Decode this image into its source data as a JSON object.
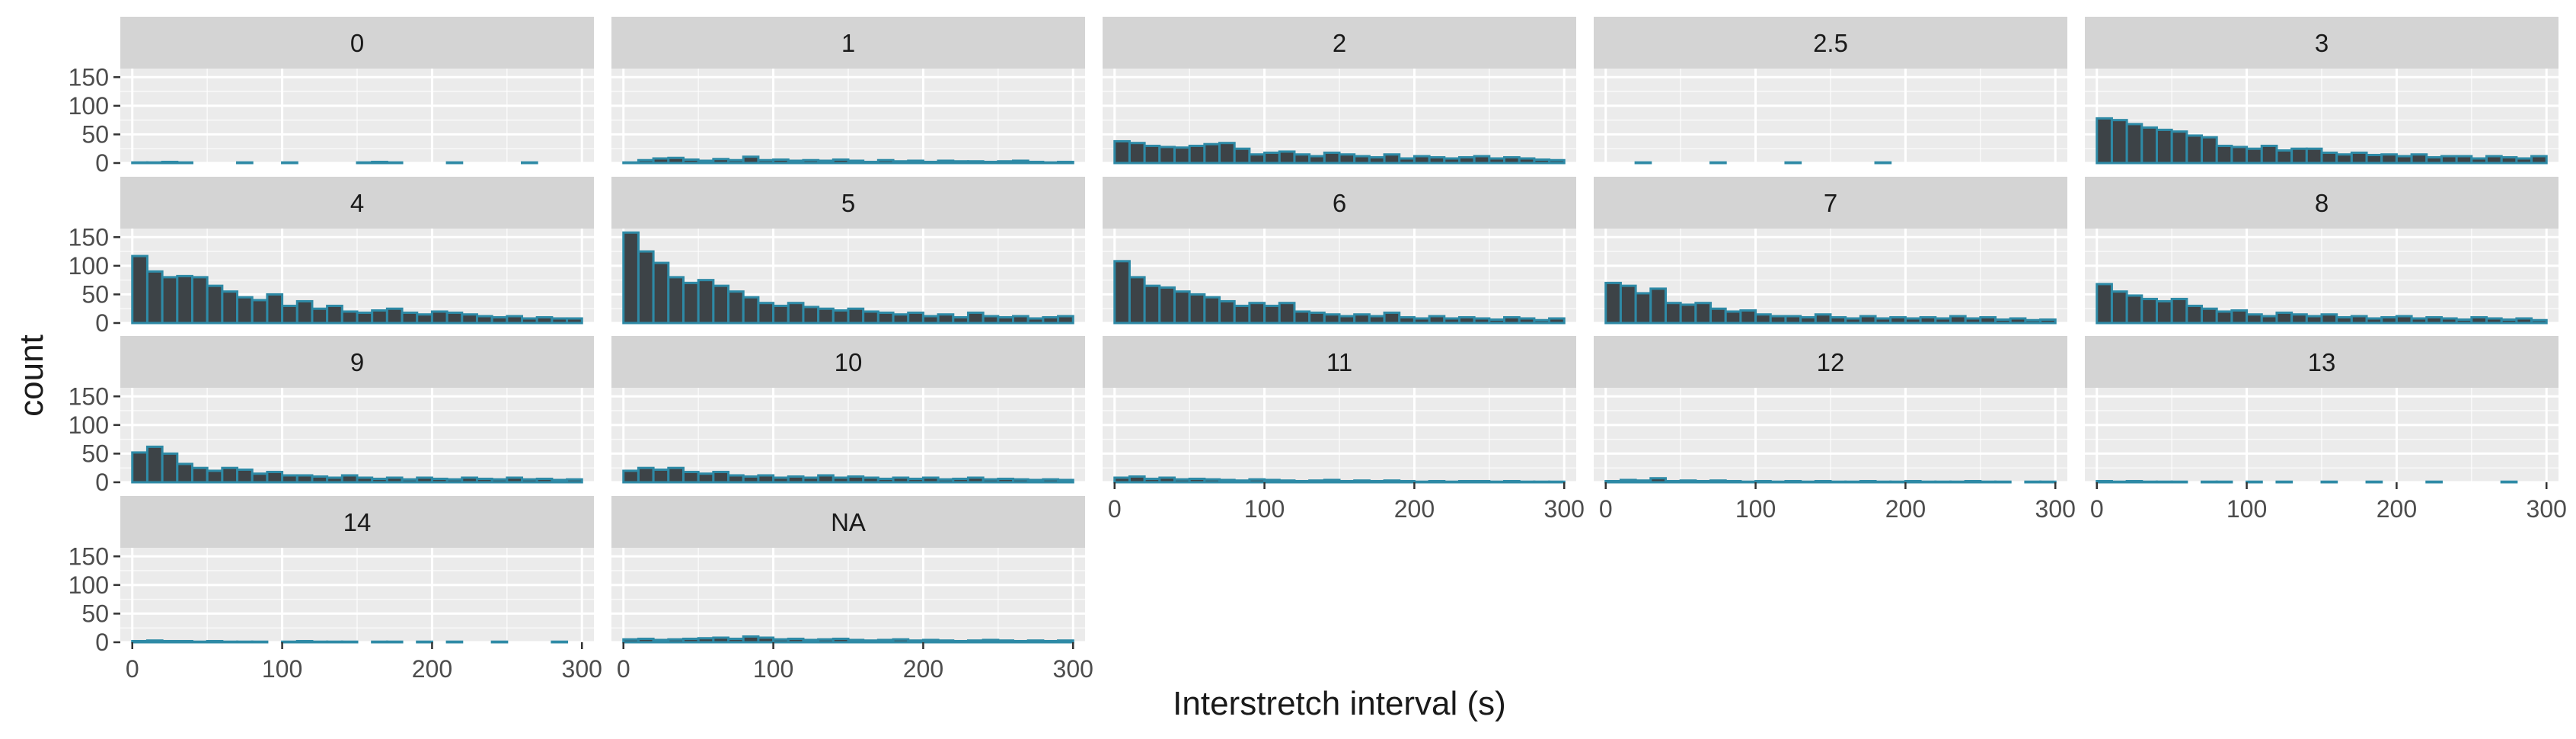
{
  "chart_data": {
    "type": "bar",
    "facet_wrap": true,
    "xlabel": "Interstretch interval (s)",
    "ylabel": "count",
    "xlim": [
      -8,
      308
    ],
    "ylim": [
      0,
      165
    ],
    "x_ticks": [
      0,
      100,
      200,
      300
    ],
    "y_ticks": [
      0,
      50,
      100,
      150
    ],
    "grid": true,
    "bin_width": 10,
    "bin_centers": [
      5,
      15,
      25,
      35,
      45,
      55,
      65,
      75,
      85,
      95,
      105,
      115,
      125,
      135,
      145,
      155,
      165,
      175,
      185,
      195,
      205,
      215,
      225,
      235,
      245,
      255,
      265,
      275,
      285,
      295
    ],
    "colors": {
      "bar_fill": "#3d4347",
      "bar_outline": "#2e8aa6",
      "panel_bg": "#ebebeb",
      "strip_bg": "#d4d4d4",
      "grid": "#ffffff",
      "text": "#1a1a1a",
      "tick_text": "#4d4d4d"
    },
    "panels": [
      {
        "label": "0",
        "values": [
          1,
          1,
          2,
          1,
          0,
          0,
          0,
          1,
          0,
          0,
          1,
          0,
          0,
          0,
          0,
          1,
          2,
          1,
          0,
          0,
          0,
          1,
          0,
          0,
          0,
          0,
          1,
          0,
          0,
          0
        ]
      },
      {
        "label": "1",
        "values": [
          1,
          5,
          8,
          9,
          6,
          4,
          7,
          5,
          11,
          5,
          6,
          4,
          5,
          4,
          6,
          4,
          2,
          5,
          3,
          4,
          2,
          4,
          3,
          3,
          2,
          3,
          4,
          2,
          1,
          2
        ]
      },
      {
        "label": "2",
        "values": [
          38,
          35,
          30,
          28,
          27,
          30,
          33,
          35,
          25,
          15,
          18,
          20,
          15,
          12,
          18,
          15,
          12,
          10,
          15,
          8,
          12,
          10,
          8,
          10,
          12,
          8,
          10,
          8,
          6,
          5
        ]
      },
      {
        "label": "2.5",
        "values": [
          0,
          0,
          1,
          0,
          0,
          0,
          0,
          1,
          0,
          0,
          0,
          0,
          1,
          0,
          0,
          0,
          0,
          0,
          1,
          0,
          0,
          0,
          0,
          0,
          0,
          0,
          0,
          0,
          0,
          0
        ]
      },
      {
        "label": "3",
        "values": [
          78,
          75,
          68,
          62,
          58,
          55,
          48,
          45,
          30,
          28,
          25,
          30,
          22,
          25,
          25,
          18,
          15,
          18,
          14,
          15,
          12,
          15,
          10,
          12,
          12,
          8,
          12,
          10,
          8,
          12
        ]
      },
      {
        "label": "4",
        "values": [
          117,
          90,
          80,
          82,
          80,
          65,
          55,
          45,
          40,
          50,
          30,
          38,
          25,
          30,
          20,
          18,
          22,
          25,
          18,
          15,
          20,
          18,
          15,
          12,
          10,
          12,
          8,
          10,
          8,
          8
        ]
      },
      {
        "label": "5",
        "values": [
          158,
          125,
          105,
          80,
          70,
          75,
          65,
          55,
          45,
          35,
          30,
          35,
          28,
          25,
          22,
          25,
          20,
          18,
          15,
          18,
          12,
          15,
          10,
          18,
          12,
          10,
          12,
          8,
          10,
          12
        ]
      },
      {
        "label": "6",
        "values": [
          108,
          80,
          65,
          62,
          55,
          50,
          45,
          38,
          30,
          35,
          30,
          35,
          20,
          18,
          15,
          12,
          15,
          12,
          18,
          10,
          8,
          12,
          8,
          10,
          8,
          6,
          10,
          8,
          5,
          8
        ]
      },
      {
        "label": "7",
        "values": [
          70,
          65,
          52,
          60,
          35,
          32,
          35,
          25,
          20,
          22,
          15,
          12,
          12,
          10,
          15,
          10,
          8,
          12,
          8,
          10,
          8,
          10,
          8,
          12,
          8,
          10,
          6,
          8,
          5,
          6
        ]
      },
      {
        "label": "8",
        "values": [
          68,
          55,
          48,
          42,
          38,
          42,
          30,
          25,
          20,
          22,
          15,
          12,
          18,
          15,
          12,
          15,
          10,
          12,
          8,
          10,
          12,
          8,
          10,
          8,
          6,
          10,
          8,
          6,
          8,
          5
        ]
      },
      {
        "label": "9",
        "values": [
          52,
          62,
          50,
          32,
          25,
          20,
          25,
          22,
          15,
          18,
          12,
          12,
          10,
          8,
          12,
          8,
          6,
          8,
          5,
          8,
          6,
          5,
          8,
          6,
          5,
          8,
          5,
          6,
          4,
          5
        ]
      },
      {
        "label": "10",
        "values": [
          20,
          25,
          22,
          25,
          18,
          15,
          18,
          12,
          10,
          12,
          8,
          10,
          8,
          12,
          8,
          10,
          8,
          6,
          8,
          6,
          8,
          5,
          6,
          8,
          5,
          6,
          5,
          4,
          5,
          4
        ]
      },
      {
        "label": "11",
        "values": [
          8,
          10,
          6,
          8,
          5,
          6,
          5,
          4,
          3,
          5,
          4,
          3,
          2,
          3,
          4,
          2,
          3,
          2,
          3,
          2,
          1,
          2,
          1,
          2,
          2,
          1,
          2,
          1,
          1,
          1
        ]
      },
      {
        "label": "12",
        "values": [
          2,
          4,
          3,
          7,
          2,
          3,
          2,
          3,
          2,
          1,
          2,
          1,
          2,
          1,
          2,
          1,
          1,
          2,
          1,
          1,
          2,
          1,
          1,
          1,
          2,
          1,
          1,
          0,
          1,
          1
        ]
      },
      {
        "label": "13",
        "values": [
          2,
          1,
          2,
          1,
          1,
          1,
          0,
          1,
          1,
          0,
          1,
          0,
          1,
          0,
          0,
          1,
          0,
          0,
          1,
          0,
          0,
          0,
          1,
          0,
          0,
          0,
          0,
          1,
          0,
          0
        ]
      },
      {
        "label": "14",
        "values": [
          2,
          3,
          2,
          2,
          1,
          2,
          1,
          1,
          1,
          0,
          1,
          2,
          1,
          1,
          1,
          0,
          1,
          1,
          0,
          1,
          0,
          1,
          0,
          0,
          1,
          0,
          0,
          0,
          1,
          0
        ]
      },
      {
        "label": "NA",
        "values": [
          5,
          6,
          4,
          5,
          6,
          7,
          8,
          6,
          10,
          8,
          5,
          6,
          4,
          5,
          6,
          4,
          3,
          4,
          5,
          3,
          4,
          3,
          2,
          3,
          4,
          3,
          2,
          3,
          2,
          3
        ]
      }
    ]
  }
}
